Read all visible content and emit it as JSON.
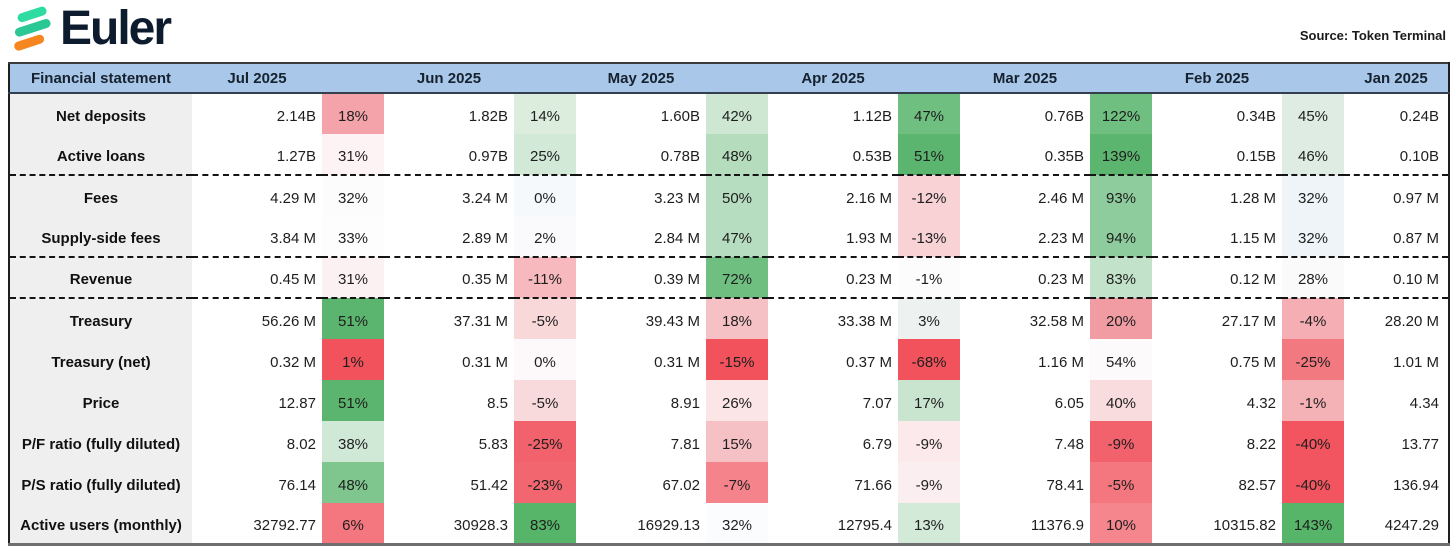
{
  "logo": {
    "brand": "Euler",
    "text_color": "#0d1b2e",
    "bar_colors": [
      "#2edba0",
      "#2bc795",
      "#f6861f"
    ]
  },
  "source_label": "Source: Token Terminal",
  "colors": {
    "header_bg": "#a9c7e8",
    "header_text": "#16222f",
    "label_col_bg": "#f0efef"
  },
  "table": {
    "header_label": "Financial statement",
    "months": [
      "Jul 2025",
      "Jun 2025",
      "May 2025",
      "Apr 2025",
      "Mar 2025",
      "Feb 2025",
      "Jan 2025"
    ],
    "rows": [
      {
        "label": "Net deposits",
        "divider": false,
        "cells": [
          {
            "value": "2.14B",
            "pct": "18%",
            "bg": "#f3a3a9"
          },
          {
            "value": "1.82B",
            "pct": "14%",
            "bg": "#dcedde"
          },
          {
            "value": "1.60B",
            "pct": "42%",
            "bg": "#cde7d2"
          },
          {
            "value": "1.12B",
            "pct": "47%",
            "bg": "#6fbf80"
          },
          {
            "value": "0.76B",
            "pct": "122%",
            "bg": "#6fbf80"
          },
          {
            "value": "0.34B",
            "pct": "45%",
            "bg": "#dfece3"
          }
        ],
        "jan": "0.24B"
      },
      {
        "label": "Active loans",
        "divider": true,
        "cells": [
          {
            "value": "1.27B",
            "pct": "31%",
            "bg": "#fdf3f4"
          },
          {
            "value": "0.97B",
            "pct": "25%",
            "bg": "#d2e9d7"
          },
          {
            "value": "0.78B",
            "pct": "48%",
            "bg": "#b4dcbd"
          },
          {
            "value": "0.53B",
            "pct": "51%",
            "bg": "#5cb56e"
          },
          {
            "value": "0.35B",
            "pct": "139%",
            "bg": "#5cb56e"
          },
          {
            "value": "0.15B",
            "pct": "46%",
            "bg": "#dfece3"
          }
        ],
        "jan": "0.10B"
      },
      {
        "label": "Fees",
        "divider": false,
        "cells": [
          {
            "value": "4.29 M",
            "pct": "32%",
            "bg": "#fcfcfd"
          },
          {
            "value": "3.24 M",
            "pct": "0%",
            "bg": "#f6f9fb"
          },
          {
            "value": "3.23 M",
            "pct": "50%",
            "bg": "#b7ddc0"
          },
          {
            "value": "2.16 M",
            "pct": "-12%",
            "bg": "#f8d2d5"
          },
          {
            "value": "2.46 M",
            "pct": "93%",
            "bg": "#8ecc9d"
          },
          {
            "value": "1.28 M",
            "pct": "32%",
            "bg": "#eef4f7"
          }
        ],
        "jan": "0.97 M"
      },
      {
        "label": "Supply-side fees",
        "divider": true,
        "cells": [
          {
            "value": "3.84 M",
            "pct": "33%",
            "bg": "#fdfdfe"
          },
          {
            "value": "2.89 M",
            "pct": "2%",
            "bg": "#faf9fb"
          },
          {
            "value": "2.84 M",
            "pct": "47%",
            "bg": "#b7ddc0"
          },
          {
            "value": "1.93 M",
            "pct": "-13%",
            "bg": "#f8d2d5"
          },
          {
            "value": "2.23 M",
            "pct": "94%",
            "bg": "#8ecc9d"
          },
          {
            "value": "1.15 M",
            "pct": "32%",
            "bg": "#eef4f7"
          }
        ],
        "jan": "0.87 M"
      },
      {
        "label": "Revenue",
        "divider": true,
        "cells": [
          {
            "value": "0.45 M",
            "pct": "31%",
            "bg": "#fcf1f2"
          },
          {
            "value": "0.35 M",
            "pct": "-11%",
            "bg": "#f7b9be"
          },
          {
            "value": "0.39 M",
            "pct": "72%",
            "bg": "#6fbf80"
          },
          {
            "value": "0.23 M",
            "pct": "-1%",
            "bg": "#fdfcfd"
          },
          {
            "value": "0.23 M",
            "pct": "83%",
            "bg": "#c2e2ca"
          },
          {
            "value": "0.12 M",
            "pct": "28%",
            "bg": "#fbfafb"
          }
        ],
        "jan": "0.10 M"
      },
      {
        "label": "Treasury",
        "divider": false,
        "cells": [
          {
            "value": "56.26 M",
            "pct": "51%",
            "bg": "#5cb56e"
          },
          {
            "value": "37.31 M",
            "pct": "-5%",
            "bg": "#f9d8da"
          },
          {
            "value": "39.43 M",
            "pct": "18%",
            "bg": "#f6c1c5"
          },
          {
            "value": "33.38 M",
            "pct": "3%",
            "bg": "#edf1ef"
          },
          {
            "value": "32.58 M",
            "pct": "20%",
            "bg": "#f19ca3"
          },
          {
            "value": "27.17 M",
            "pct": "-4%",
            "bg": "#f5aeb3"
          }
        ],
        "jan": "28.20 M"
      },
      {
        "label": "Treasury (net)",
        "divider": false,
        "cells": [
          {
            "value": "0.32 M",
            "pct": "1%",
            "bg": "#f2525c"
          },
          {
            "value": "0.31 M",
            "pct": "0%",
            "bg": "#fdf9fa"
          },
          {
            "value": "0.31 M",
            "pct": "-15%",
            "bg": "#f2525c"
          },
          {
            "value": "0.37 M",
            "pct": "-68%",
            "bg": "#f2525c"
          },
          {
            "value": "1.16 M",
            "pct": "54%",
            "bg": "#fdfafb"
          },
          {
            "value": "0.75 M",
            "pct": "-25%",
            "bg": "#f37980"
          }
        ],
        "jan": "1.01 M"
      },
      {
        "label": "Price",
        "divider": false,
        "cells": [
          {
            "value": "12.87",
            "pct": "51%",
            "bg": "#5cb56e"
          },
          {
            "value": "8.5",
            "pct": "-5%",
            "bg": "#f9dadc"
          },
          {
            "value": "8.91",
            "pct": "26%",
            "bg": "#fbe5e7"
          },
          {
            "value": "7.07",
            "pct": "17%",
            "bg": "#c9e5d0"
          },
          {
            "value": "6.05",
            "pct": "40%",
            "bg": "#f9dcde"
          },
          {
            "value": "4.32",
            "pct": "-1%",
            "bg": "#f4b1b6"
          }
        ],
        "jan": "4.34"
      },
      {
        "label": "P/F ratio (fully diluted)",
        "divider": false,
        "cells": [
          {
            "value": "8.02",
            "pct": "38%",
            "bg": "#d0e8d6"
          },
          {
            "value": "5.83",
            "pct": "-25%",
            "bg": "#f2626c"
          },
          {
            "value": "7.81",
            "pct": "15%",
            "bg": "#f6c1c5"
          },
          {
            "value": "6.79",
            "pct": "-9%",
            "bg": "#fbe9eb"
          },
          {
            "value": "7.48",
            "pct": "-9%",
            "bg": "#f2626c"
          },
          {
            "value": "8.22",
            "pct": "-40%",
            "bg": "#f2555f"
          }
        ],
        "jan": "13.77"
      },
      {
        "label": "P/S ratio (fully diluted)",
        "divider": false,
        "cells": [
          {
            "value": "76.14",
            "pct": "48%",
            "bg": "#7fc68e"
          },
          {
            "value": "51.42",
            "pct": "-23%",
            "bg": "#f2676f"
          },
          {
            "value": "67.02",
            "pct": "-7%",
            "bg": "#f5838b"
          },
          {
            "value": "71.66",
            "pct": "-9%",
            "bg": "#fbeef0"
          },
          {
            "value": "78.41",
            "pct": "-5%",
            "bg": "#f4777f"
          },
          {
            "value": "82.57",
            "pct": "-40%",
            "bg": "#f2555f"
          }
        ],
        "jan": "136.94"
      },
      {
        "label": "Active users (monthly)",
        "divider": false,
        "cells": [
          {
            "value": "32792.77",
            "pct": "6%",
            "bg": "#f4777f"
          },
          {
            "value": "30928.3",
            "pct": "83%",
            "bg": "#57b569"
          },
          {
            "value": "16929.13",
            "pct": "32%",
            "bg": "#fbfcfd"
          },
          {
            "value": "12795.4",
            "pct": "13%",
            "bg": "#d4ead9"
          },
          {
            "value": "11376.9",
            "pct": "10%",
            "bg": "#f5868e"
          },
          {
            "value": "10315.82",
            "pct": "143%",
            "bg": "#57b569"
          }
        ],
        "jan": "4247.29"
      }
    ]
  }
}
